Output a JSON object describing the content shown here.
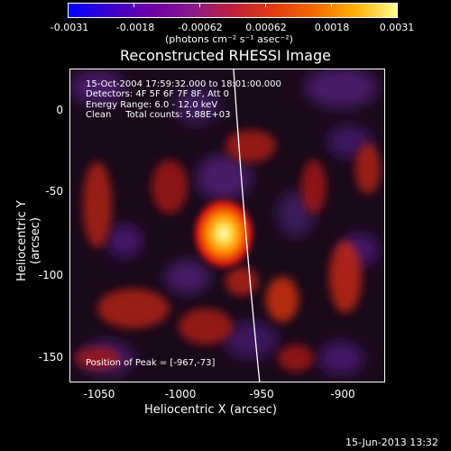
{
  "colorbar": {
    "tick_labels": [
      "-0.0031",
      "-0.0018",
      "-0.00062",
      "0.00062",
      "0.0018",
      "0.0031"
    ],
    "unit_label": "(photons cm⁻² s⁻¹ asec⁻²)",
    "colors": [
      "#0000ff",
      "#6a00a8",
      "#c0203a",
      "#f46a00",
      "#ffff90"
    ]
  },
  "title": "Reconstructed RHESSI Image",
  "info_lines": [
    "15-Oct-2004 17:59:32.000 to 18:01:00.000",
    "Detectors: 4F 5F 6F 7F 8F, Att 0",
    "Energy Range: 6.0 - 12.0 keV",
    "Clean     Total counts: 5.88E+03"
  ],
  "peak_label": "Position of Peak = [-967,-73]",
  "axes": {
    "x_label": "Heliocentric X (arcsec)",
    "y_label": "Heliocentric Y (arcsec)",
    "x_ticks": [
      "-1050",
      "-1000",
      "-950",
      "-900"
    ],
    "y_ticks": [
      "0",
      "-50",
      "-100",
      "-150"
    ]
  },
  "timestamp": "15-Jun-2013 13:32"
}
